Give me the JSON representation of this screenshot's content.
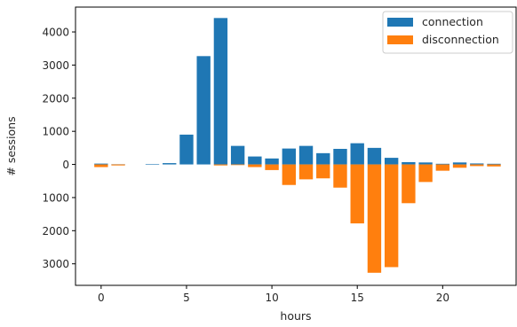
{
  "chart_data": {
    "type": "bar",
    "xlabel": "hours",
    "ylabel": "# sessions",
    "xlim": [
      -1.5,
      24.3
    ],
    "ylim": [
      -3650,
      4750
    ],
    "x_ticks": [
      0,
      5,
      10,
      15,
      20
    ],
    "x_tick_labels": [
      "0",
      "5",
      "10",
      "15",
      "20"
    ],
    "y_ticks": [
      4000,
      3000,
      2000,
      1000,
      0,
      -1000,
      -2000,
      -3000
    ],
    "y_tick_labels": [
      "4000",
      "3000",
      "2000",
      "1000",
      "0",
      "1000",
      "2000",
      "3000"
    ],
    "grid": false,
    "legend_position": "top-right",
    "x": [
      0,
      1,
      2,
      3,
      4,
      5,
      6,
      7,
      8,
      9,
      10,
      11,
      12,
      13,
      14,
      15,
      16,
      17,
      18,
      19,
      20,
      21,
      22,
      23
    ],
    "series": [
      {
        "name": "connection",
        "color": "#1f77b4",
        "values": [
          25,
          5,
          0,
          10,
          40,
          900,
          3270,
          4420,
          560,
          240,
          180,
          480,
          560,
          340,
          470,
          640,
          500,
          200,
          70,
          60,
          20,
          60,
          30,
          20
        ]
      },
      {
        "name": "disconnection",
        "color": "#ff7f0e",
        "values": [
          -80,
          -30,
          0,
          0,
          0,
          0,
          0,
          -30,
          -20,
          -80,
          -170,
          -620,
          -450,
          -420,
          -700,
          -1780,
          -3270,
          -3100,
          -1170,
          -530,
          -190,
          -100,
          -50,
          -60
        ]
      }
    ]
  }
}
